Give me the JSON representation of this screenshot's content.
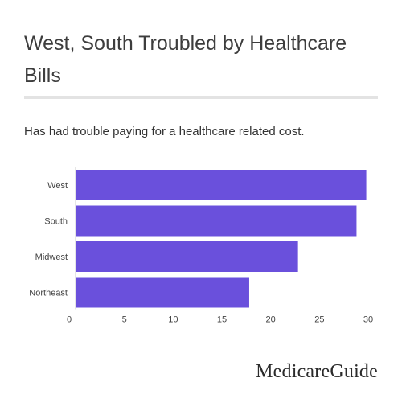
{
  "title": "West, South Troubled by Healthcare Bills",
  "brand": "MedicareGuide",
  "chart_data": {
    "type": "bar",
    "orientation": "horizontal",
    "subtitle": "Has had trouble paying for a healthcare related cost.",
    "categories": [
      "West",
      "South",
      "Midwest",
      "Northeast"
    ],
    "values": [
      29.8,
      28.8,
      22.8,
      17.8
    ],
    "xlim": [
      0,
      30
    ],
    "xticks": [
      0,
      5,
      10,
      15,
      20,
      25,
      30
    ],
    "bar_color": "#6a50dc",
    "grid": false,
    "legend": "none"
  }
}
